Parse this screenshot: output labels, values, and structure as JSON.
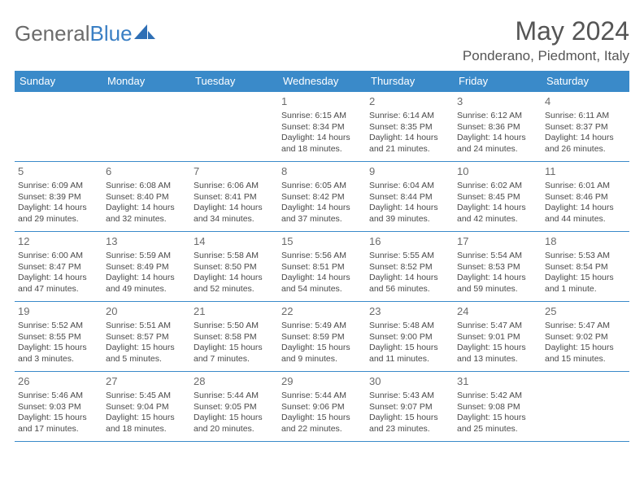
{
  "brand": {
    "part1": "General",
    "part2": "Blue"
  },
  "title": "May 2024",
  "location": "Ponderano, Piedmont, Italy",
  "colors": {
    "header_bg": "#3a8ac9",
    "header_text": "#ffffff",
    "border": "#3a8ac9",
    "logo_gray": "#6b6b6b",
    "logo_blue": "#3a7fc4",
    "text": "#4a4a4a"
  },
  "weekdays": [
    "Sunday",
    "Monday",
    "Tuesday",
    "Wednesday",
    "Thursday",
    "Friday",
    "Saturday"
  ],
  "weeks": [
    [
      null,
      null,
      null,
      {
        "n": "1",
        "sr": "Sunrise: 6:15 AM",
        "ss": "Sunset: 8:34 PM",
        "d1": "Daylight: 14 hours",
        "d2": "and 18 minutes."
      },
      {
        "n": "2",
        "sr": "Sunrise: 6:14 AM",
        "ss": "Sunset: 8:35 PM",
        "d1": "Daylight: 14 hours",
        "d2": "and 21 minutes."
      },
      {
        "n": "3",
        "sr": "Sunrise: 6:12 AM",
        "ss": "Sunset: 8:36 PM",
        "d1": "Daylight: 14 hours",
        "d2": "and 24 minutes."
      },
      {
        "n": "4",
        "sr": "Sunrise: 6:11 AM",
        "ss": "Sunset: 8:37 PM",
        "d1": "Daylight: 14 hours",
        "d2": "and 26 minutes."
      }
    ],
    [
      {
        "n": "5",
        "sr": "Sunrise: 6:09 AM",
        "ss": "Sunset: 8:39 PM",
        "d1": "Daylight: 14 hours",
        "d2": "and 29 minutes."
      },
      {
        "n": "6",
        "sr": "Sunrise: 6:08 AM",
        "ss": "Sunset: 8:40 PM",
        "d1": "Daylight: 14 hours",
        "d2": "and 32 minutes."
      },
      {
        "n": "7",
        "sr": "Sunrise: 6:06 AM",
        "ss": "Sunset: 8:41 PM",
        "d1": "Daylight: 14 hours",
        "d2": "and 34 minutes."
      },
      {
        "n": "8",
        "sr": "Sunrise: 6:05 AM",
        "ss": "Sunset: 8:42 PM",
        "d1": "Daylight: 14 hours",
        "d2": "and 37 minutes."
      },
      {
        "n": "9",
        "sr": "Sunrise: 6:04 AM",
        "ss": "Sunset: 8:44 PM",
        "d1": "Daylight: 14 hours",
        "d2": "and 39 minutes."
      },
      {
        "n": "10",
        "sr": "Sunrise: 6:02 AM",
        "ss": "Sunset: 8:45 PM",
        "d1": "Daylight: 14 hours",
        "d2": "and 42 minutes."
      },
      {
        "n": "11",
        "sr": "Sunrise: 6:01 AM",
        "ss": "Sunset: 8:46 PM",
        "d1": "Daylight: 14 hours",
        "d2": "and 44 minutes."
      }
    ],
    [
      {
        "n": "12",
        "sr": "Sunrise: 6:00 AM",
        "ss": "Sunset: 8:47 PM",
        "d1": "Daylight: 14 hours",
        "d2": "and 47 minutes."
      },
      {
        "n": "13",
        "sr": "Sunrise: 5:59 AM",
        "ss": "Sunset: 8:49 PM",
        "d1": "Daylight: 14 hours",
        "d2": "and 49 minutes."
      },
      {
        "n": "14",
        "sr": "Sunrise: 5:58 AM",
        "ss": "Sunset: 8:50 PM",
        "d1": "Daylight: 14 hours",
        "d2": "and 52 minutes."
      },
      {
        "n": "15",
        "sr": "Sunrise: 5:56 AM",
        "ss": "Sunset: 8:51 PM",
        "d1": "Daylight: 14 hours",
        "d2": "and 54 minutes."
      },
      {
        "n": "16",
        "sr": "Sunrise: 5:55 AM",
        "ss": "Sunset: 8:52 PM",
        "d1": "Daylight: 14 hours",
        "d2": "and 56 minutes."
      },
      {
        "n": "17",
        "sr": "Sunrise: 5:54 AM",
        "ss": "Sunset: 8:53 PM",
        "d1": "Daylight: 14 hours",
        "d2": "and 59 minutes."
      },
      {
        "n": "18",
        "sr": "Sunrise: 5:53 AM",
        "ss": "Sunset: 8:54 PM",
        "d1": "Daylight: 15 hours",
        "d2": "and 1 minute."
      }
    ],
    [
      {
        "n": "19",
        "sr": "Sunrise: 5:52 AM",
        "ss": "Sunset: 8:55 PM",
        "d1": "Daylight: 15 hours",
        "d2": "and 3 minutes."
      },
      {
        "n": "20",
        "sr": "Sunrise: 5:51 AM",
        "ss": "Sunset: 8:57 PM",
        "d1": "Daylight: 15 hours",
        "d2": "and 5 minutes."
      },
      {
        "n": "21",
        "sr": "Sunrise: 5:50 AM",
        "ss": "Sunset: 8:58 PM",
        "d1": "Daylight: 15 hours",
        "d2": "and 7 minutes."
      },
      {
        "n": "22",
        "sr": "Sunrise: 5:49 AM",
        "ss": "Sunset: 8:59 PM",
        "d1": "Daylight: 15 hours",
        "d2": "and 9 minutes."
      },
      {
        "n": "23",
        "sr": "Sunrise: 5:48 AM",
        "ss": "Sunset: 9:00 PM",
        "d1": "Daylight: 15 hours",
        "d2": "and 11 minutes."
      },
      {
        "n": "24",
        "sr": "Sunrise: 5:47 AM",
        "ss": "Sunset: 9:01 PM",
        "d1": "Daylight: 15 hours",
        "d2": "and 13 minutes."
      },
      {
        "n": "25",
        "sr": "Sunrise: 5:47 AM",
        "ss": "Sunset: 9:02 PM",
        "d1": "Daylight: 15 hours",
        "d2": "and 15 minutes."
      }
    ],
    [
      {
        "n": "26",
        "sr": "Sunrise: 5:46 AM",
        "ss": "Sunset: 9:03 PM",
        "d1": "Daylight: 15 hours",
        "d2": "and 17 minutes."
      },
      {
        "n": "27",
        "sr": "Sunrise: 5:45 AM",
        "ss": "Sunset: 9:04 PM",
        "d1": "Daylight: 15 hours",
        "d2": "and 18 minutes."
      },
      {
        "n": "28",
        "sr": "Sunrise: 5:44 AM",
        "ss": "Sunset: 9:05 PM",
        "d1": "Daylight: 15 hours",
        "d2": "and 20 minutes."
      },
      {
        "n": "29",
        "sr": "Sunrise: 5:44 AM",
        "ss": "Sunset: 9:06 PM",
        "d1": "Daylight: 15 hours",
        "d2": "and 22 minutes."
      },
      {
        "n": "30",
        "sr": "Sunrise: 5:43 AM",
        "ss": "Sunset: 9:07 PM",
        "d1": "Daylight: 15 hours",
        "d2": "and 23 minutes."
      },
      {
        "n": "31",
        "sr": "Sunrise: 5:42 AM",
        "ss": "Sunset: 9:08 PM",
        "d1": "Daylight: 15 hours",
        "d2": "and 25 minutes."
      },
      null
    ]
  ]
}
